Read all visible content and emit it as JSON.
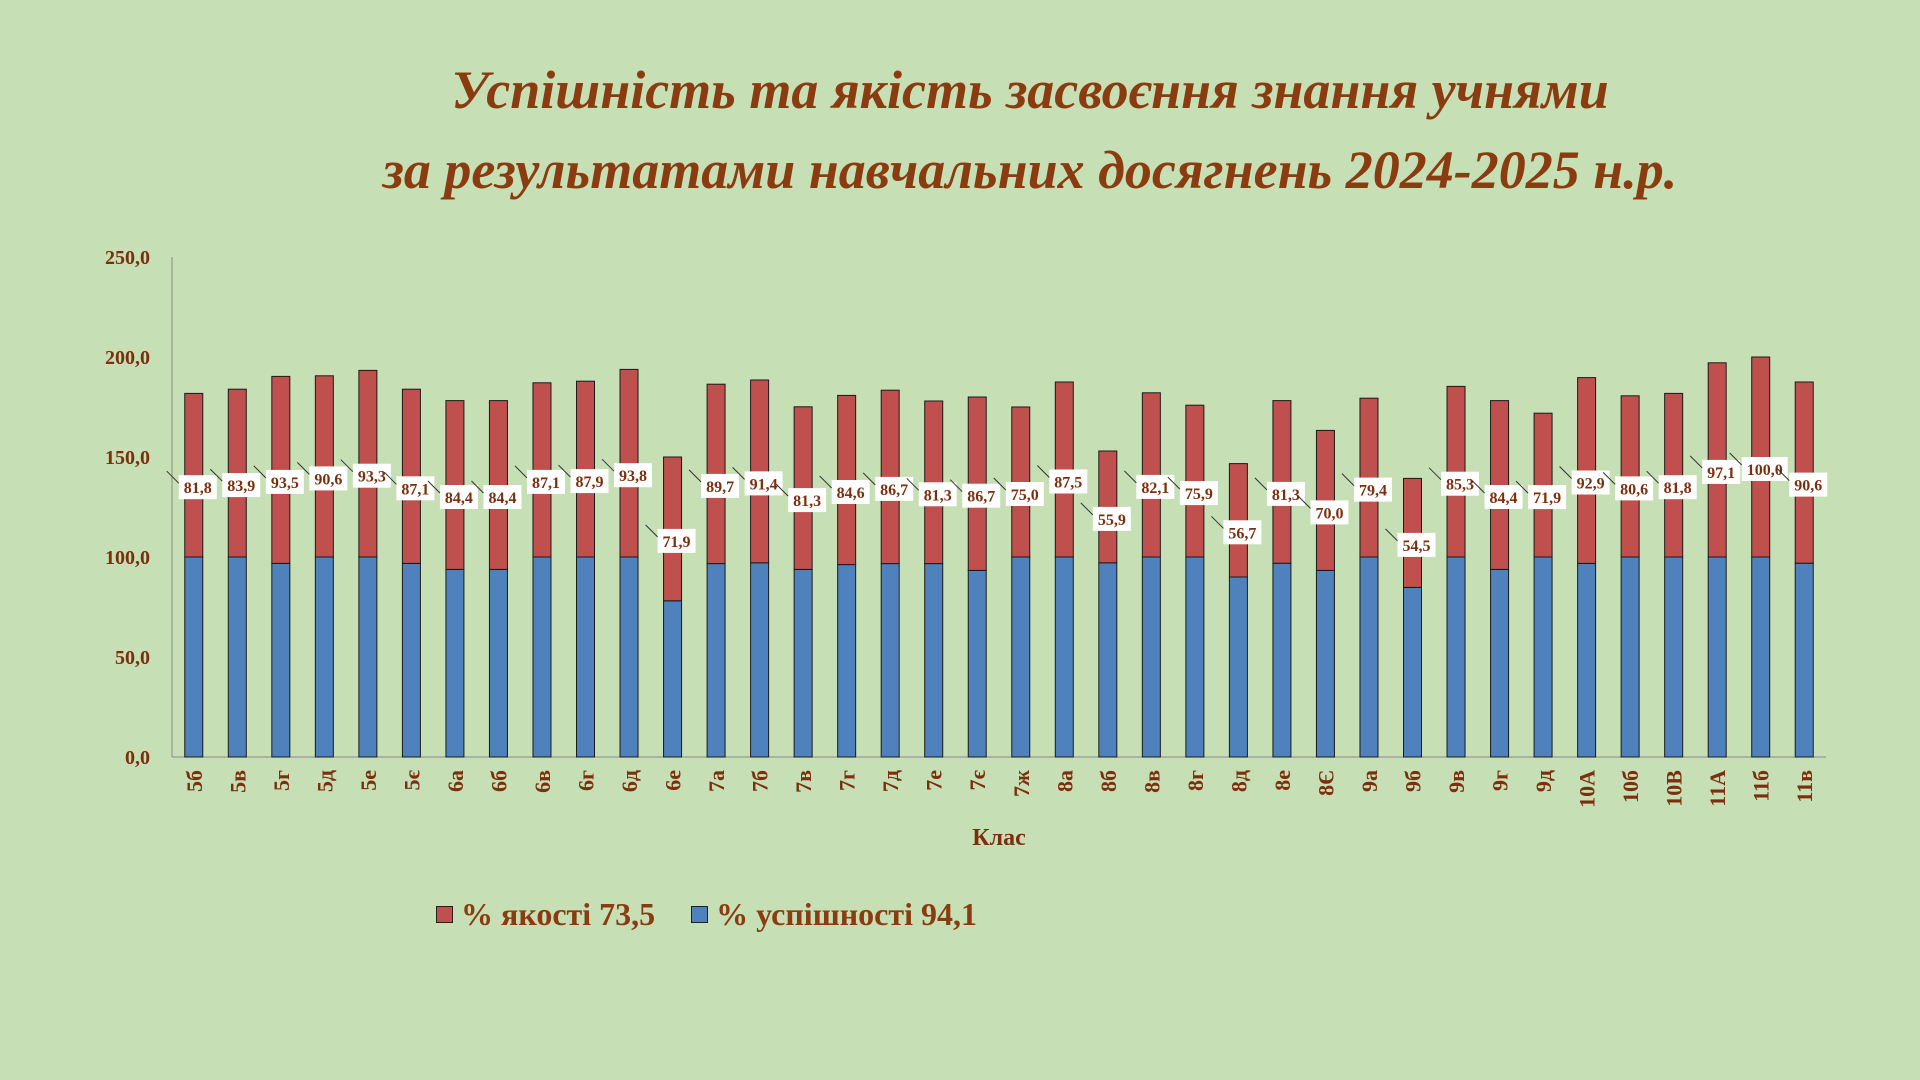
{
  "colors": {
    "background": "#c6dfb4",
    "title": "#8a3c10",
    "quality": "#c0504d",
    "success": "#4f81bd",
    "axis_text": "#7b2f0e"
  },
  "chart_data": {
    "type": "bar",
    "stacked": true,
    "title_lines": [
      "Успішність та якість засвоєння знання учнями",
      "за результатами навчальних досягнень 2024-2025 н.р."
    ],
    "xlabel": "Клас",
    "ylabel": "",
    "ylim": [
      0,
      250
    ],
    "yticks": [
      "0,0",
      "50,0",
      "100,0",
      "150,0",
      "200,0",
      "250,0"
    ],
    "grid": false,
    "legend_position": "bottom-left",
    "categories": [
      "5б",
      "5в",
      "5г",
      "5д",
      "5е",
      "5є",
      "6а",
      "6б",
      "6в",
      "6г",
      "6д",
      "6е",
      "7а",
      "7б",
      "7в",
      "7г",
      "7д",
      "7е",
      "7є",
      "7ж",
      "8а",
      "8б",
      "8в",
      "8г",
      "8д",
      "8е",
      "8Є",
      "9а",
      "9б",
      "9в",
      "9г",
      "9д",
      "10А",
      "10б",
      "10В",
      "11А",
      "11б",
      "11в"
    ],
    "series": [
      {
        "name": "% успішності 94,1",
        "color": "#4f81bd",
        "values": [
          100,
          100,
          96.8,
          100,
          100,
          96.8,
          93.8,
          93.8,
          100,
          100,
          100,
          78.1,
          96.7,
          97.1,
          93.8,
          96.2,
          96.7,
          96.7,
          93.3,
          100,
          100,
          97.1,
          100,
          100,
          90,
          96.9,
          93.3,
          100,
          84.8,
          100,
          93.8,
          100,
          96.8,
          100,
          100,
          100,
          100,
          96.9
        ]
      },
      {
        "name": "% якості 73,5",
        "color": "#c0504d",
        "values": [
          81.8,
          83.9,
          93.5,
          90.6,
          93.3,
          87.1,
          84.4,
          84.4,
          87.1,
          87.9,
          93.8,
          71.9,
          89.7,
          91.4,
          81.3,
          84.6,
          86.7,
          81.3,
          86.7,
          75.0,
          87.5,
          55.9,
          82.1,
          75.9,
          56.7,
          81.3,
          70.0,
          79.4,
          54.5,
          85.3,
          84.4,
          71.9,
          92.9,
          80.6,
          81.8,
          97.1,
          100.0,
          90.6
        ]
      }
    ],
    "data_labels": [
      "81,8",
      "83,9",
      "93,5",
      "90,6",
      "93,3",
      "87,1",
      "84,4",
      "84,4",
      "87,1",
      "87,9",
      "93,8",
      "71,9",
      "89,7",
      "91,4",
      "81,3",
      "84,6",
      "86,7",
      "81,3",
      "86,7",
      "75,0",
      "87,5",
      "55,9",
      "82,1",
      "75,9",
      "56,7",
      "81,3",
      "70,0",
      "79,4",
      "54,5",
      "85,3",
      "84,4",
      "71,9",
      "92,9",
      "80,6",
      "81,8",
      "97,1",
      "100,0",
      "90,6"
    ]
  },
  "legend": {
    "quality_label": "% якості 73,5",
    "success_label": "% успішності 94,1"
  }
}
